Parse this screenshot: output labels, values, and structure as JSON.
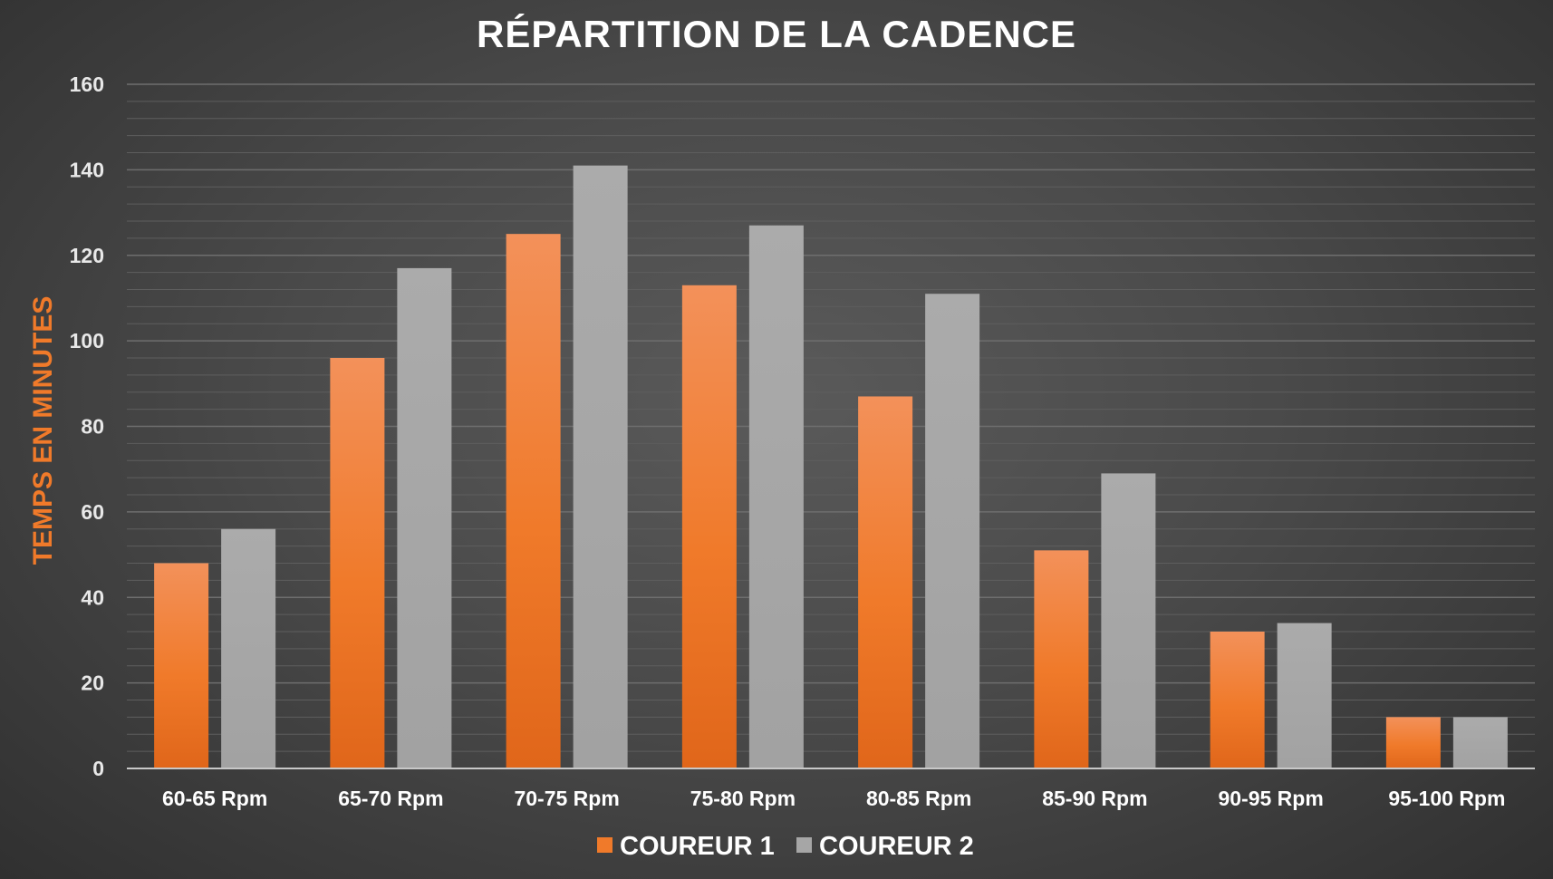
{
  "chart_data": {
    "type": "bar",
    "title": "RÉPARTITION DE LA CADENCE",
    "ylabel": "TEMPS EN MINUTES",
    "xlabel": "",
    "ylim": [
      0,
      160
    ],
    "yticks": [
      0,
      20,
      40,
      60,
      80,
      100,
      120,
      140,
      160
    ],
    "grid": true,
    "legend_position": "bottom",
    "categories": [
      "60-65 Rpm",
      "65-70 Rpm",
      "70-75 Rpm",
      "75-80 Rpm",
      "80-85 Rpm",
      "85-90 Rpm",
      "90-95 Rpm",
      "95-100 Rpm"
    ],
    "series": [
      {
        "name": "COUREUR 1",
        "color": "#f07a2a",
        "values": [
          48,
          96,
          125,
          113,
          87,
          51,
          32,
          12
        ]
      },
      {
        "name": "COUREUR 2",
        "color": "#a6a6a6",
        "values": [
          56,
          117,
          141,
          127,
          111,
          69,
          34,
          12
        ]
      }
    ]
  }
}
